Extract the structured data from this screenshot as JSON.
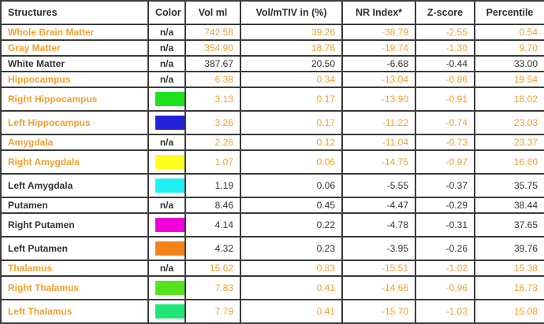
{
  "colors": {
    "accent_orange_text": "#F0A030",
    "dark_text": "#333333",
    "border": "#3B3B3B"
  },
  "table": {
    "columns": [
      {
        "label": "Structures",
        "align": "left"
      },
      {
        "label": "Color",
        "align": "center"
      },
      {
        "label": "Vol ml",
        "align": "center"
      },
      {
        "label": "Vol/mTIV in (%)",
        "align": "center"
      },
      {
        "label": "NR Index*",
        "align": "center"
      },
      {
        "label": "Z-score",
        "align": "center"
      },
      {
        "label": "Percentile",
        "align": "center"
      }
    ],
    "rows": [
      {
        "structure": "Whole Brain Matter",
        "accent": true,
        "color_label": "n/a",
        "swatch": null,
        "swatch_name": null,
        "vol_ml": "742.58",
        "vol_mtiv_pct": "39.26",
        "nr_index": "-38.79",
        "z_score": "-2.55",
        "percentile": "0.54"
      },
      {
        "structure": "Gray Matter",
        "accent": true,
        "color_label": "n/a",
        "swatch": null,
        "swatch_name": null,
        "vol_ml": "354.90",
        "vol_mtiv_pct": "18.76",
        "nr_index": "-19.74",
        "z_score": "-1.30",
        "percentile": "9.70"
      },
      {
        "structure": "White Matter",
        "accent": false,
        "color_label": "n/a",
        "swatch": null,
        "swatch_name": null,
        "vol_ml": "387.67",
        "vol_mtiv_pct": "20.50",
        "nr_index": "-6.68",
        "z_score": "-0.44",
        "percentile": "33.00"
      },
      {
        "structure": "Hippocampus",
        "accent": true,
        "color_label": "n/a",
        "swatch": null,
        "swatch_name": null,
        "vol_ml": "6.38",
        "vol_mtiv_pct": "0.34",
        "nr_index": "-13.04",
        "z_score": "-0.86",
        "percentile": "19.54"
      },
      {
        "structure": "Right Hippocampus",
        "accent": true,
        "color_label": null,
        "swatch": "#1EE11E",
        "swatch_name": "green",
        "vol_ml": "3.13",
        "vol_mtiv_pct": "0.17",
        "nr_index": "-13.90",
        "z_score": "-0.91",
        "percentile": "18.02"
      },
      {
        "structure": "Left Hippocampus",
        "accent": true,
        "color_label": null,
        "swatch": "#2121DC",
        "swatch_name": "blue",
        "vol_ml": "3.26",
        "vol_mtiv_pct": "0.17",
        "nr_index": "-11.22",
        "z_score": "-0.74",
        "percentile": "23.03"
      },
      {
        "structure": "Amygdala",
        "accent": true,
        "color_label": "n/a",
        "swatch": null,
        "swatch_name": null,
        "vol_ml": "2.26",
        "vol_mtiv_pct": "0.12",
        "nr_index": "-11.04",
        "z_score": "-0.73",
        "percentile": "23.37"
      },
      {
        "structure": "Right Amygdala",
        "accent": true,
        "color_label": null,
        "swatch": "#FFFF1E",
        "swatch_name": "yellow",
        "vol_ml": "1.07",
        "vol_mtiv_pct": "0.06",
        "nr_index": "-14.75",
        "z_score": "-0.97",
        "percentile": "16.60"
      },
      {
        "structure": "Left Amygdala",
        "accent": false,
        "color_label": null,
        "swatch": "#1EF0F5",
        "swatch_name": "cyan",
        "vol_ml": "1.19",
        "vol_mtiv_pct": "0.06",
        "nr_index": "-5.55",
        "z_score": "-0.37",
        "percentile": "35.75"
      },
      {
        "structure": "Putamen",
        "accent": false,
        "color_label": "n/a",
        "swatch": null,
        "swatch_name": null,
        "vol_ml": "8.46",
        "vol_mtiv_pct": "0.45",
        "nr_index": "-4.47",
        "z_score": "-0.29",
        "percentile": "38.44"
      },
      {
        "structure": "Right Putamen",
        "accent": false,
        "color_label": null,
        "swatch": "#F000D8",
        "swatch_name": "magenta",
        "vol_ml": "4.14",
        "vol_mtiv_pct": "0.22",
        "nr_index": "-4.78",
        "z_score": "-0.31",
        "percentile": "37.65"
      },
      {
        "structure": "Left Putamen",
        "accent": false,
        "color_label": null,
        "swatch": "#F58218",
        "swatch_name": "orange",
        "vol_ml": "4.32",
        "vol_mtiv_pct": "0.23",
        "nr_index": "-3.95",
        "z_score": "-0.26",
        "percentile": "39.76"
      },
      {
        "structure": "Thalamus",
        "accent": true,
        "color_label": "n/a",
        "swatch": null,
        "swatch_name": null,
        "vol_ml": "15.62",
        "vol_mtiv_pct": "0.83",
        "nr_index": "-15.51",
        "z_score": "-1.02",
        "percentile": "15.38"
      },
      {
        "structure": "Right Thalamus",
        "accent": true,
        "color_label": null,
        "swatch": "#55E51E",
        "swatch_name": "chartreuse",
        "vol_ml": "7.83",
        "vol_mtiv_pct": "0.41",
        "nr_index": "-14.66",
        "z_score": "-0.96",
        "percentile": "16.73"
      },
      {
        "structure": "Left Thalamus",
        "accent": true,
        "color_label": null,
        "swatch": "#1EE573",
        "swatch_name": "spring-green",
        "vol_ml": "7.79",
        "vol_mtiv_pct": "0.41",
        "nr_index": "-15.70",
        "z_score": "-1.03",
        "percentile": "15.08"
      }
    ]
  }
}
